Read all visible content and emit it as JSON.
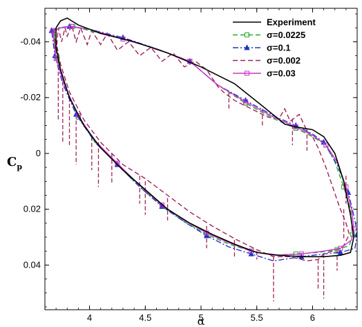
{
  "chart_data": {
    "type": "line",
    "xlabel": "α",
    "ylabel_main": "C",
    "ylabel_sub": "p",
    "xlim": [
      3.6,
      6.4
    ],
    "ylim": [
      -0.052,
      0.056
    ],
    "y_inverted": true,
    "grid": false,
    "legend_position": "top-right",
    "x_ticks": [
      "4",
      "4.5",
      "5",
      "5.5",
      "6"
    ],
    "x_tick_values": [
      4,
      4.5,
      5,
      5.5,
      6
    ],
    "y_ticks": [
      "-0.04",
      "-0.02",
      "0",
      "0.02",
      "0.04"
    ],
    "y_tick_values": [
      -0.04,
      -0.02,
      0,
      0.02,
      0.04
    ],
    "series": [
      {
        "name": "Experiment",
        "color": "#000000",
        "style": "solid",
        "marker": "none",
        "points": [
          [
            3.7,
            -0.045
          ],
          [
            3.74,
            -0.0475
          ],
          [
            3.8,
            -0.0485
          ],
          [
            3.9,
            -0.046
          ],
          [
            4.1,
            -0.043
          ],
          [
            4.4,
            -0.04
          ],
          [
            4.7,
            -0.036
          ],
          [
            5.0,
            -0.031
          ],
          [
            5.3,
            -0.025
          ],
          [
            5.55,
            -0.017
          ],
          [
            5.75,
            -0.0105
          ],
          [
            5.85,
            -0.0095
          ],
          [
            6.0,
            -0.0085
          ],
          [
            6.1,
            -0.006
          ],
          [
            6.2,
            0.0
          ],
          [
            6.28,
            0.01
          ],
          [
            6.34,
            0.022
          ],
          [
            6.37,
            0.03
          ],
          [
            6.34,
            0.0355
          ],
          [
            6.25,
            0.0365
          ],
          [
            6.1,
            0.037
          ],
          [
            5.9,
            0.037
          ],
          [
            5.7,
            0.0365
          ],
          [
            5.5,
            0.0355
          ],
          [
            5.3,
            0.0325
          ],
          [
            5.1,
            0.029
          ],
          [
            4.9,
            0.025
          ],
          [
            4.7,
            0.02
          ],
          [
            4.5,
            0.013
          ],
          [
            4.3,
            0.006
          ],
          [
            4.1,
            -0.002
          ],
          [
            3.95,
            -0.01
          ],
          [
            3.82,
            -0.02
          ],
          [
            3.74,
            -0.03
          ],
          [
            3.7,
            -0.038
          ],
          [
            3.7,
            -0.045
          ]
        ]
      },
      {
        "name": "σ=0.0225",
        "color": "#22aa22",
        "style": "dash",
        "marker": "square",
        "points": [
          [
            3.68,
            -0.044
          ],
          [
            3.75,
            -0.045
          ],
          [
            3.85,
            -0.0455
          ],
          [
            4.0,
            -0.044
          ],
          [
            4.3,
            -0.041
          ],
          [
            4.6,
            -0.0375
          ],
          [
            4.9,
            -0.033
          ],
          [
            5.15,
            -0.0245
          ],
          [
            5.4,
            -0.018
          ],
          [
            5.65,
            -0.0125
          ],
          [
            5.85,
            -0.009
          ],
          [
            6.0,
            -0.006
          ],
          [
            6.12,
            -0.003
          ],
          [
            6.2,
            0.003
          ],
          [
            6.28,
            0.012
          ],
          [
            6.34,
            0.02
          ],
          [
            6.36,
            0.029
          ],
          [
            6.33,
            0.033
          ],
          [
            6.22,
            0.0345
          ],
          [
            6.05,
            0.0355
          ],
          [
            5.85,
            0.036
          ],
          [
            5.65,
            0.0365
          ],
          [
            5.45,
            0.035
          ],
          [
            5.25,
            0.0325
          ],
          [
            5.05,
            0.029
          ],
          [
            4.85,
            0.0245
          ],
          [
            4.65,
            0.019
          ],
          [
            4.45,
            0.012
          ],
          [
            4.25,
            0.004
          ],
          [
            4.05,
            -0.004
          ],
          [
            3.9,
            -0.013
          ],
          [
            3.78,
            -0.024
          ],
          [
            3.71,
            -0.034
          ],
          [
            3.68,
            -0.044
          ]
        ]
      },
      {
        "name": "σ=0.1",
        "color": "#2233cc",
        "style": "dashdot",
        "marker": "triangle",
        "points": [
          [
            3.66,
            -0.044
          ],
          [
            3.72,
            -0.045
          ],
          [
            3.82,
            -0.0455
          ],
          [
            4.0,
            -0.0445
          ],
          [
            4.3,
            -0.0415
          ],
          [
            4.6,
            -0.0375
          ],
          [
            4.9,
            -0.033
          ],
          [
            5.15,
            -0.0245
          ],
          [
            5.4,
            -0.019
          ],
          [
            5.65,
            -0.0135
          ],
          [
            5.85,
            -0.01
          ],
          [
            6.0,
            -0.007
          ],
          [
            6.1,
            -0.004
          ],
          [
            6.22,
            0.004
          ],
          [
            6.32,
            0.014
          ],
          [
            6.38,
            0.024
          ],
          [
            6.4,
            0.029
          ],
          [
            6.38,
            0.034
          ],
          [
            6.25,
            0.0355
          ],
          [
            6.1,
            0.036
          ],
          [
            5.9,
            0.037
          ],
          [
            5.65,
            0.0385
          ],
          [
            5.45,
            0.036
          ],
          [
            5.25,
            0.0335
          ],
          [
            5.05,
            0.0295
          ],
          [
            4.85,
            0.0245
          ],
          [
            4.65,
            0.019
          ],
          [
            4.45,
            0.012
          ],
          [
            4.25,
            0.004
          ],
          [
            4.05,
            -0.004
          ],
          [
            3.88,
            -0.014
          ],
          [
            3.76,
            -0.025
          ],
          [
            3.69,
            -0.035
          ],
          [
            3.66,
            -0.044
          ]
        ]
      },
      {
        "name": "σ=0.002",
        "color": "#a0205a",
        "style": "dash",
        "marker": "none",
        "points": [
          [
            3.68,
            -0.044
          ],
          [
            3.7,
            -0.036
          ],
          [
            3.72,
            -0.045
          ],
          [
            3.75,
            -0.04
          ],
          [
            3.78,
            -0.045
          ],
          [
            3.8,
            -0.042
          ],
          [
            3.84,
            -0.046
          ],
          [
            3.88,
            -0.04
          ],
          [
            3.92,
            -0.045
          ],
          [
            3.98,
            -0.039
          ],
          [
            4.02,
            -0.044
          ],
          [
            4.1,
            -0.039
          ],
          [
            4.16,
            -0.043
          ],
          [
            4.25,
            -0.037
          ],
          [
            4.35,
            -0.04
          ],
          [
            4.45,
            -0.035
          ],
          [
            4.55,
            -0.038
          ],
          [
            4.65,
            -0.033
          ],
          [
            4.75,
            -0.036
          ],
          [
            4.85,
            -0.031
          ],
          [
            4.95,
            -0.033
          ],
          [
            5.05,
            -0.03
          ],
          [
            5.15,
            -0.024
          ],
          [
            5.2,
            -0.022
          ],
          [
            5.3,
            -0.019
          ],
          [
            5.4,
            -0.017
          ],
          [
            5.5,
            -0.015
          ],
          [
            5.6,
            -0.013
          ],
          [
            5.7,
            -0.0125
          ],
          [
            5.75,
            -0.016
          ],
          [
            5.8,
            -0.0115
          ],
          [
            5.88,
            -0.014
          ],
          [
            5.95,
            -0.008
          ],
          [
            6.0,
            -0.006
          ],
          [
            6.05,
            -0.002
          ],
          [
            6.12,
            0.005
          ],
          [
            6.18,
            0.012
          ],
          [
            6.24,
            0.019
          ],
          [
            6.3,
            0.025
          ],
          [
            6.33,
            0.029
          ],
          [
            6.28,
            0.033
          ],
          [
            6.22,
            0.0345
          ],
          [
            6.1,
            0.036
          ],
          [
            6.05,
            0.038
          ],
          [
            5.95,
            0.0385
          ],
          [
            5.8,
            0.037
          ],
          [
            5.65,
            0.037
          ],
          [
            5.5,
            0.0345
          ],
          [
            5.3,
            0.0305
          ],
          [
            5.1,
            0.026
          ],
          [
            4.9,
            0.021
          ],
          [
            4.7,
            0.015
          ],
          [
            4.5,
            0.009
          ],
          [
            4.3,
            0.004
          ],
          [
            4.1,
            -0.004
          ],
          [
            3.95,
            -0.012
          ],
          [
            3.82,
            -0.022
          ],
          [
            3.74,
            -0.032
          ],
          [
            3.68,
            -0.044
          ]
        ]
      },
      {
        "name": "σ=0.03",
        "color": "#cc33cc",
        "style": "solid",
        "marker": "square",
        "points": [
          [
            3.67,
            -0.044
          ],
          [
            3.74,
            -0.045
          ],
          [
            3.84,
            -0.0455
          ],
          [
            4.0,
            -0.0445
          ],
          [
            4.3,
            -0.041
          ],
          [
            4.6,
            -0.0375
          ],
          [
            4.9,
            -0.033
          ],
          [
            5.15,
            -0.0245
          ],
          [
            5.4,
            -0.0185
          ],
          [
            5.65,
            -0.013
          ],
          [
            5.85,
            -0.0095
          ],
          [
            6.0,
            -0.0065
          ],
          [
            6.12,
            -0.003
          ],
          [
            6.22,
            0.003
          ],
          [
            6.3,
            0.012
          ],
          [
            6.35,
            0.02
          ],
          [
            6.37,
            0.027
          ],
          [
            6.35,
            0.031
          ],
          [
            6.25,
            0.034
          ],
          [
            6.1,
            0.035
          ],
          [
            5.9,
            0.036
          ],
          [
            5.65,
            0.0365
          ],
          [
            5.45,
            0.035
          ],
          [
            5.25,
            0.032
          ],
          [
            5.05,
            0.0285
          ],
          [
            4.85,
            0.024
          ],
          [
            4.65,
            0.0185
          ],
          [
            4.45,
            0.0115
          ],
          [
            4.25,
            0.0035
          ],
          [
            4.05,
            -0.0045
          ],
          [
            3.9,
            -0.0135
          ],
          [
            3.78,
            -0.024
          ],
          [
            3.7,
            -0.034
          ],
          [
            3.67,
            -0.044
          ]
        ]
      }
    ],
    "spikes": [
      {
        "x": 3.72,
        "y0": -0.036,
        "y1": -0.012
      },
      {
        "x": 3.76,
        "y0": -0.028,
        "y1": -0.004
      },
      {
        "x": 3.82,
        "y0": -0.02,
        "y1": -0.003
      },
      {
        "x": 3.88,
        "y0": -0.014,
        "y1": 0.004
      },
      {
        "x": 4.02,
        "y0": -0.006,
        "y1": 0.006
      },
      {
        "x": 4.08,
        "y0": -0.004,
        "y1": 0.012
      },
      {
        "x": 4.2,
        "y0": 0.0,
        "y1": 0.011
      },
      {
        "x": 4.45,
        "y0": 0.008,
        "y1": 0.018
      },
      {
        "x": 4.5,
        "y0": 0.01,
        "y1": 0.022
      },
      {
        "x": 4.7,
        "y0": 0.016,
        "y1": 0.024
      },
      {
        "x": 5.05,
        "y0": 0.026,
        "y1": 0.034
      },
      {
        "x": 5.3,
        "y0": 0.031,
        "y1": 0.037
      },
      {
        "x": 5.5,
        "y0": 0.035,
        "y1": 0.038
      },
      {
        "x": 5.65,
        "y0": 0.037,
        "y1": 0.053
      },
      {
        "x": 6.05,
        "y0": 0.038,
        "y1": 0.049
      },
      {
        "x": 6.1,
        "y0": 0.036,
        "y1": 0.052
      },
      {
        "x": 6.22,
        "y0": 0.0345,
        "y1": 0.042
      },
      {
        "x": 6.3,
        "y0": 0.008,
        "y1": 0.018
      },
      {
        "x": 6.28,
        "y0": 0.02,
        "y1": 0.031
      },
      {
        "x": 5.82,
        "y0": -0.0125,
        "y1": -0.003
      },
      {
        "x": 5.95,
        "y0": -0.009,
        "y1": -0.001
      },
      {
        "x": 5.55,
        "y0": -0.016,
        "y1": -0.01
      },
      {
        "x": 5.25,
        "y0": -0.022,
        "y1": -0.016
      }
    ]
  }
}
